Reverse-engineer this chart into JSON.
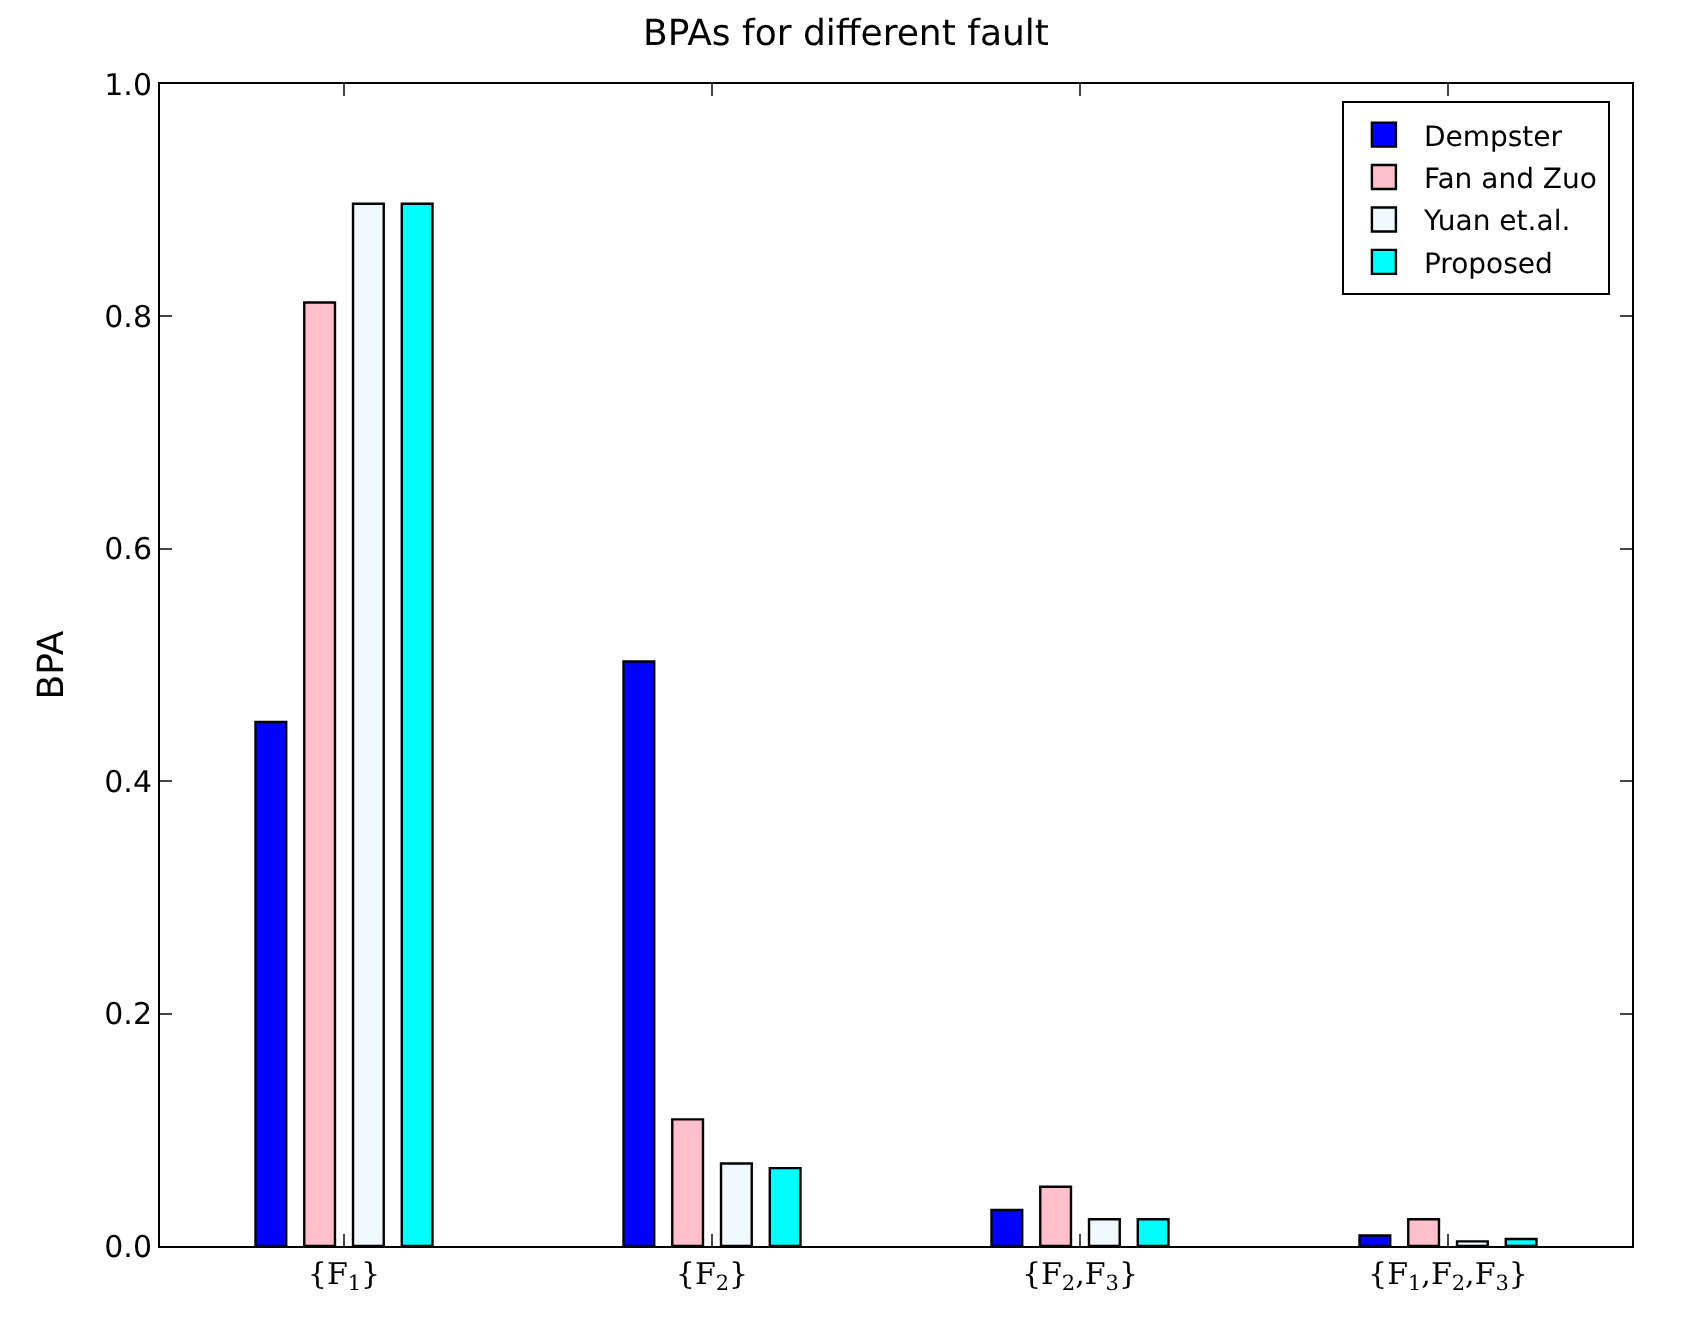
{
  "chart_data": {
    "type": "bar",
    "title": "BPAs for different fault",
    "ylabel": "BPA",
    "categories": [
      "{F$_{1}$}",
      "{F$_{2}$}",
      "{F$_{2}$,F$_{3}$}",
      "{F$_{1}$,F$_{2}$,F$_{3}$}"
    ],
    "series": [
      {
        "name": "Dempster",
        "color": "#0000ff",
        "values": [
          0.451,
          0.503,
          0.031,
          0.009
        ]
      },
      {
        "name": "Fan and Zuo",
        "color": "#ffc0cb",
        "values": [
          0.812,
          0.109,
          0.051,
          0.023
        ]
      },
      {
        "name": "Yuan et.al.",
        "color": "#f0f8ff",
        "values": [
          0.897,
          0.071,
          0.023,
          0.004
        ]
      },
      {
        "name": "Proposed",
        "color": "#00ffff",
        "values": [
          0.897,
          0.067,
          0.023,
          0.006
        ]
      }
    ],
    "ylim": [
      0,
      1.0
    ],
    "yticks": [
      {
        "value": 0,
        "label": "0.0"
      },
      0.2,
      0.4,
      0.6,
      0.8,
      {
        "value": 1.0,
        "label": "1.0"
      }
    ],
    "grid": false,
    "legend": "top right"
  }
}
